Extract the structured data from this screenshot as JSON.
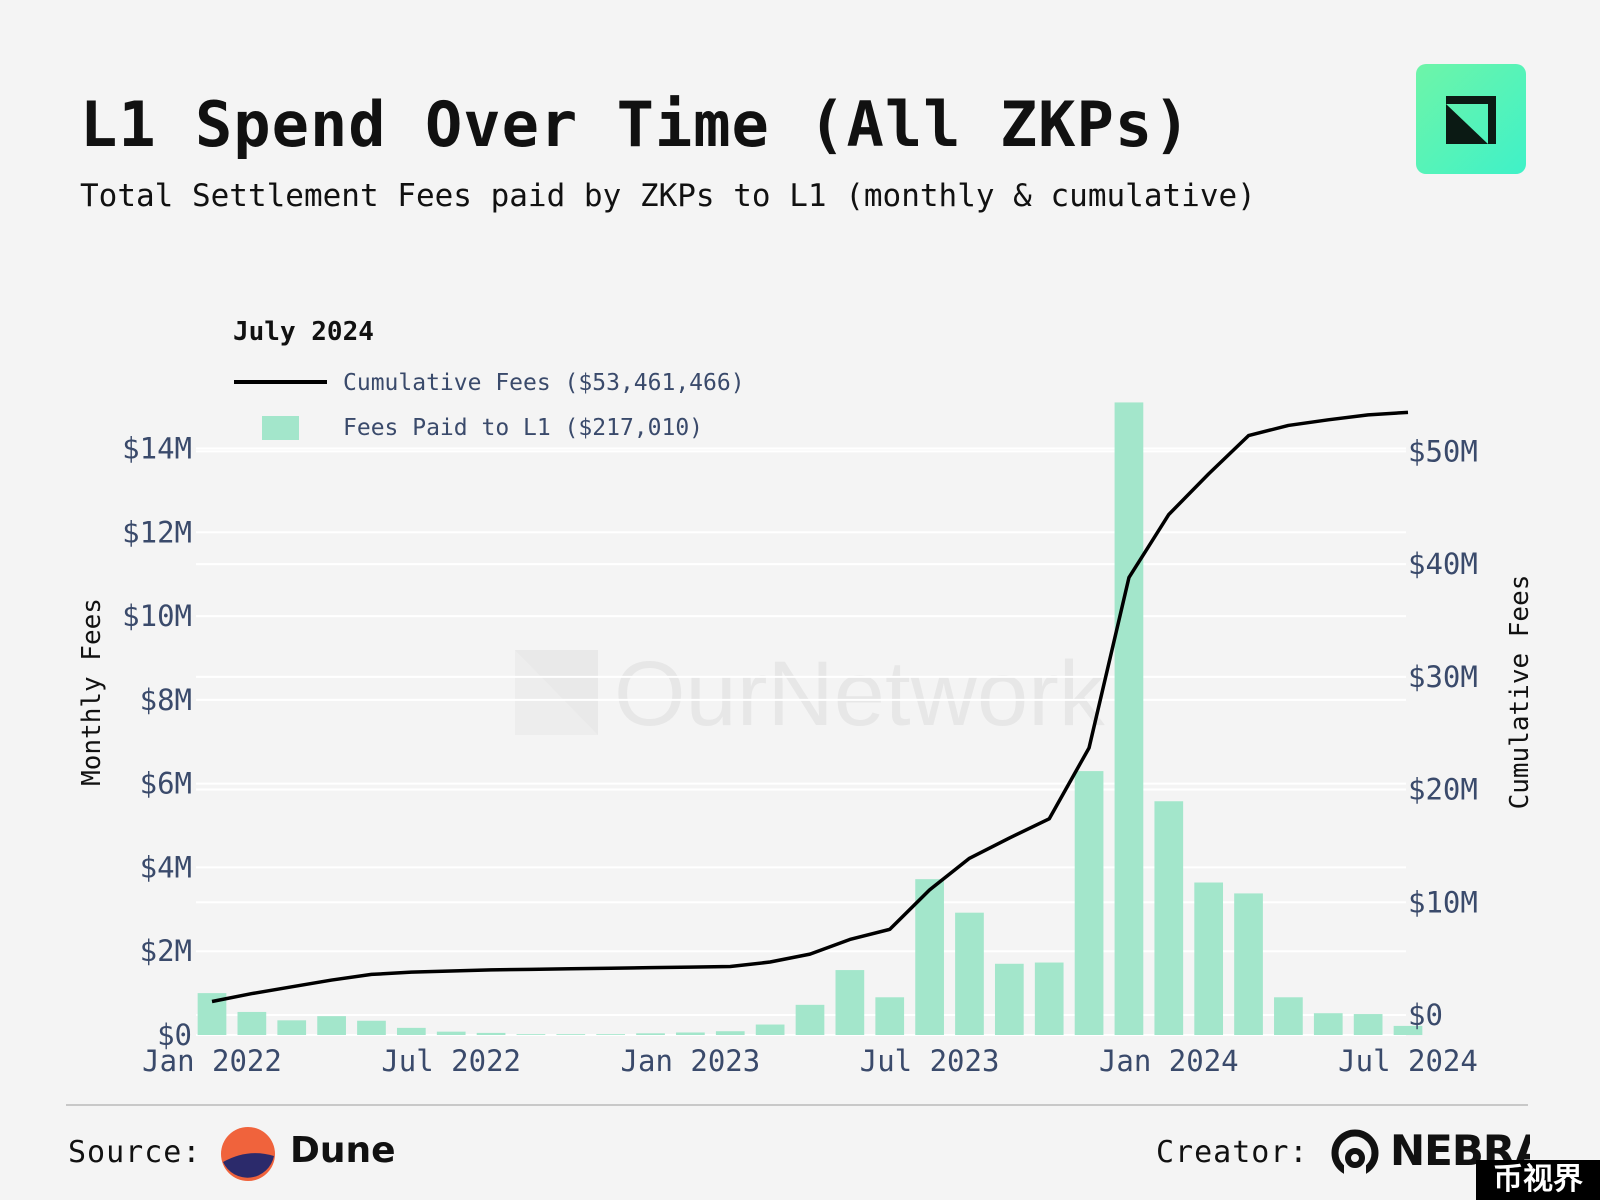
{
  "header": {
    "title": "L1 Spend Over Time (All ZKPs)",
    "subtitle": "Total Settlement Fees paid by ZKPs to L1 (monthly & cumulative)"
  },
  "watermark": "OurNetwork",
  "footer": {
    "source_label": "Source:",
    "source_name": "Dune",
    "creator_label": "Creator:",
    "creator_name": "NEBRA",
    "corner_badge": "币视界"
  },
  "colors": {
    "bar": "#a3e6cb",
    "line": "#000000",
    "axis_text": "#3a4a6b",
    "grid": "#ffffff"
  },
  "chart_data": {
    "type": "bar",
    "legend": {
      "title": "July 2024",
      "placement": "top-left",
      "entries": [
        {
          "label": "Cumulative Fees ($53,461,466)",
          "kind": "line"
        },
        {
          "label": "Fees Paid to L1 ($217,010)",
          "kind": "bar"
        }
      ]
    },
    "x": [
      "2022-01",
      "2022-02",
      "2022-03",
      "2022-04",
      "2022-05",
      "2022-06",
      "2022-07",
      "2022-08",
      "2022-09",
      "2022-10",
      "2022-11",
      "2022-12",
      "2023-01",
      "2023-02",
      "2023-03",
      "2023-04",
      "2023-05",
      "2023-06",
      "2023-07",
      "2023-08",
      "2023-09",
      "2023-10",
      "2023-11",
      "2023-12",
      "2024-01",
      "2024-02",
      "2024-03",
      "2024-04",
      "2024-05",
      "2024-06",
      "2024-07"
    ],
    "x_ticks": [
      "Jan 2022",
      "Jul 2022",
      "Jan 2023",
      "Jul 2023",
      "Jan 2024",
      "Jul 2024"
    ],
    "series": [
      {
        "name": "Fees Paid to L1",
        "type": "bar",
        "axis": "left",
        "values": [
          1000000,
          550000,
          350000,
          450000,
          340000,
          170000,
          80000,
          50000,
          20000,
          20000,
          20000,
          40000,
          60000,
          90000,
          250000,
          720000,
          1550000,
          900000,
          3720000,
          2920000,
          1700000,
          1730000,
          6300000,
          15100000,
          5580000,
          3640000,
          3380000,
          900000,
          520000,
          500000,
          217010
        ]
      },
      {
        "name": "Cumulative Fees",
        "type": "line",
        "axis": "right",
        "values": [
          1200000,
          1900000,
          2500000,
          3100000,
          3600000,
          3800000,
          3900000,
          4000000,
          4050000,
          4100000,
          4150000,
          4200000,
          4250000,
          4300000,
          4700000,
          5400000,
          6700000,
          7600000,
          11100000,
          13900000,
          15700000,
          17400000,
          23700000,
          38800000,
          44400000,
          48000000,
          51400000,
          52300000,
          52800000,
          53240000,
          53461466
        ]
      }
    ],
    "left_axis": {
      "label": "Monthly Fees",
      "range": [
        0,
        14800000
      ],
      "ticks": [
        "$0",
        "$2M",
        "$4M",
        "$6M",
        "$8M",
        "$10M",
        "$12M",
        "$14M"
      ],
      "tick_values": [
        0,
        2000000,
        4000000,
        6000000,
        8000000,
        10000000,
        12000000,
        14000000
      ]
    },
    "right_axis": {
      "label": "Cumulative Fees",
      "range": [
        0,
        55000000
      ],
      "ticks": [
        "$0",
        "$10M",
        "$20M",
        "$30M",
        "$40M",
        "$50M"
      ],
      "tick_values": [
        0,
        10000000,
        20000000,
        30000000,
        40000000,
        50000000
      ]
    },
    "grid": true
  }
}
